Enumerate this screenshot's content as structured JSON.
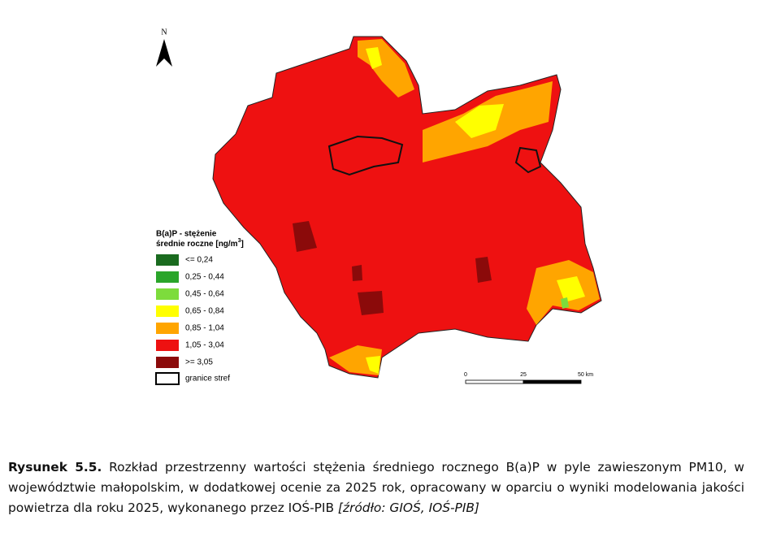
{
  "north_label": "N",
  "legend": {
    "title_line1": "B(a)P - stężenie",
    "title_line2": "średnie roczne [ng/m",
    "title_superscript": "3",
    "title_close": "]",
    "items": [
      {
        "label": "<= 0,24",
        "color": "#1a6b1f"
      },
      {
        "label": "0,25 - 0,44",
        "color": "#2aa52a"
      },
      {
        "label": "0,45 - 0,64",
        "color": "#7ddc3c"
      },
      {
        "label": "0,65 - 0,84",
        "color": "#ffff00"
      },
      {
        "label": "0,85 - 1,04",
        "color": "#ffa500"
      },
      {
        "label": "1,05 - 3,04",
        "color": "#ee1111"
      },
      {
        "label": ">= 3,05",
        "color": "#8b0a0a"
      }
    ],
    "boundary_label": "granice stref"
  },
  "scale": {
    "labels": [
      "0",
      "25",
      "50 km"
    ]
  },
  "caption": {
    "label": "Rysunek 5.5.",
    "text": " Rozkład przestrzenny wartości stężenia średniego rocznego B(a)P w pyle zawieszonym PM10, w województwie małopolskim, w dodatkowej ocenie za 2025 rok, opracowany w oparciu o wyniki modelowania jakości powietrza dla roku 2025, wykonanego przez IOŚ-PIB ",
    "source": "[źródło: GIOŚ, IOŚ-PIB]"
  }
}
